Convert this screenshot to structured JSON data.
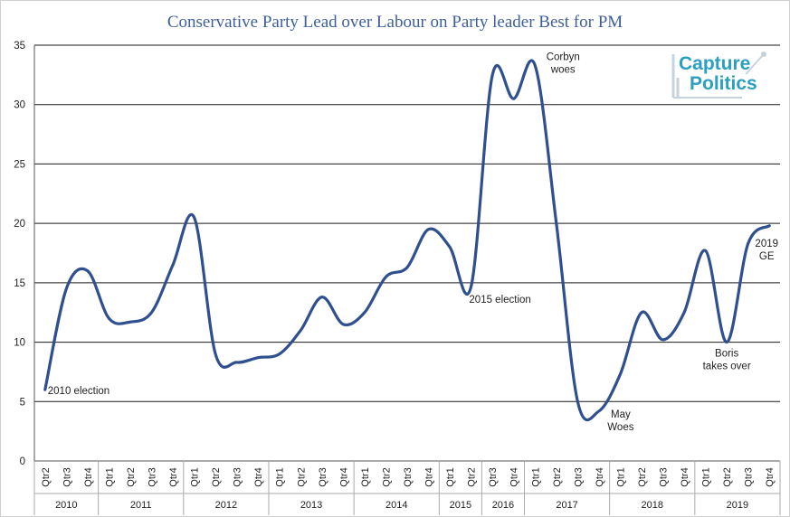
{
  "chart_data": {
    "type": "line",
    "title": "Conservative Party Lead over Labour on Party leader Best for PM",
    "ylim": [
      0,
      35
    ],
    "yticks": [
      0,
      5,
      10,
      15,
      20,
      25,
      30,
      35
    ],
    "grid": true,
    "categories": [
      "Qtr2",
      "Qtr3",
      "Qtr4",
      "Qtr1",
      "Qtr2",
      "Qtr3",
      "Qtr4",
      "Qtr1",
      "Qtr2",
      "Qtr3",
      "Qtr4",
      "Qtr1",
      "Qtr2",
      "Qtr3",
      "Qtr4",
      "Qtr1",
      "Qtr2",
      "Qtr3",
      "Qtr4",
      "Qtr1",
      "Qtr2",
      "Qtr3",
      "Qtr4",
      "Qtr1",
      "Qtr2",
      "Qtr3",
      "Qtr4",
      "Qtr1",
      "Qtr2",
      "Qtr3",
      "Qtr4",
      "Qtr1",
      "Qtr2",
      "Qtr3",
      "Qtr4"
    ],
    "years": [
      {
        "label": "2010",
        "count": 3
      },
      {
        "label": "2011",
        "count": 4
      },
      {
        "label": "2012",
        "count": 4
      },
      {
        "label": "2013",
        "count": 4
      },
      {
        "label": "2014",
        "count": 4
      },
      {
        "label": "2015",
        "count": 2
      },
      {
        "label": "2016",
        "count": 2
      },
      {
        "label": "2017",
        "count": 4
      },
      {
        "label": "2018",
        "count": 4
      },
      {
        "label": "2019",
        "count": 4
      }
    ],
    "series": [
      {
        "values": [
          6,
          14.5,
          16,
          12,
          11.7,
          12.5,
          16.5,
          20.5,
          9,
          8.3,
          8.7,
          9,
          11,
          13.8,
          11.5,
          12.5,
          15.5,
          16.3,
          19.5,
          18,
          14.7,
          32.5,
          30.5,
          33.3,
          20,
          5,
          4.2,
          7.3,
          12.5,
          10.2,
          12.5,
          17.7,
          10,
          18.3,
          19.8
        ],
        "color": "#2f4f8f"
      }
    ],
    "annotations": [
      {
        "lines": [
          "2010 election"
        ],
        "index": 0
      },
      {
        "lines": [
          "2015 election"
        ],
        "index": 20
      },
      {
        "lines": [
          "Corbyn",
          "woes"
        ],
        "index": 23
      },
      {
        "lines": [
          "May",
          "Woes"
        ],
        "index": 26
      },
      {
        "lines": [
          "Boris",
          "takes over"
        ],
        "index": 32
      },
      {
        "lines": [
          "2019",
          "GE"
        ],
        "index": 34
      }
    ]
  },
  "logo": {
    "line1": "Capture",
    "line2": "Politics"
  }
}
